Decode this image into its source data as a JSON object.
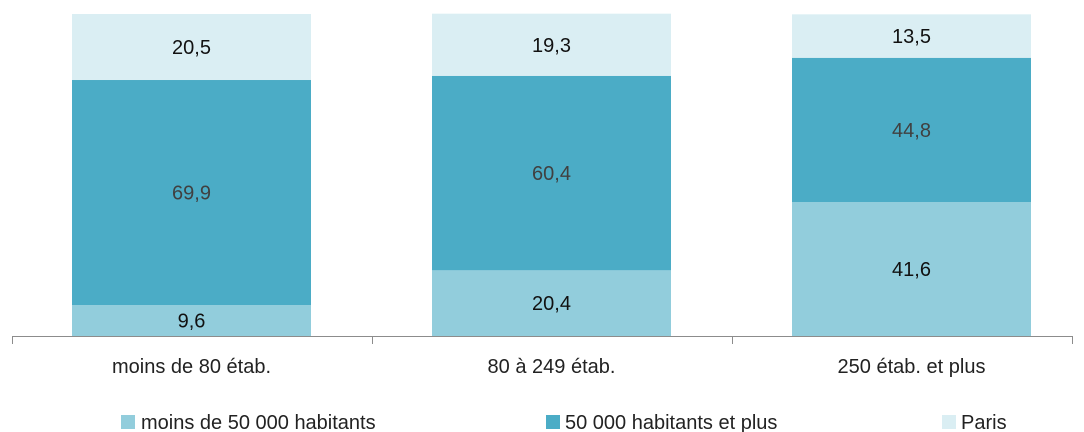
{
  "chart_data": {
    "type": "bar",
    "stacked": true,
    "orientation": "vertical",
    "categories": [
      "moins de 80 étab.",
      "80 à 249 étab.",
      "250 étab. et plus"
    ],
    "series": [
      {
        "name": "moins de 50 000 habitants",
        "color": "#92cddc",
        "label_color": "#111111",
        "values": [
          "9,6",
          "20,4",
          "41,6"
        ]
      },
      {
        "name": "50 000 habitants et plus",
        "color": "#4bacc6",
        "label_color": "#404040",
        "values": [
          "69,9",
          "60,4",
          "44,8"
        ]
      },
      {
        "name": "Paris",
        "color": "#daeef3",
        "label_color": "#111111",
        "values": [
          "20,5",
          "19,3",
          "13,5"
        ]
      }
    ],
    "ylim": [
      0,
      100
    ],
    "grid": false,
    "legend": "bottom",
    "title": "",
    "xlabel": "",
    "ylabel": ""
  }
}
